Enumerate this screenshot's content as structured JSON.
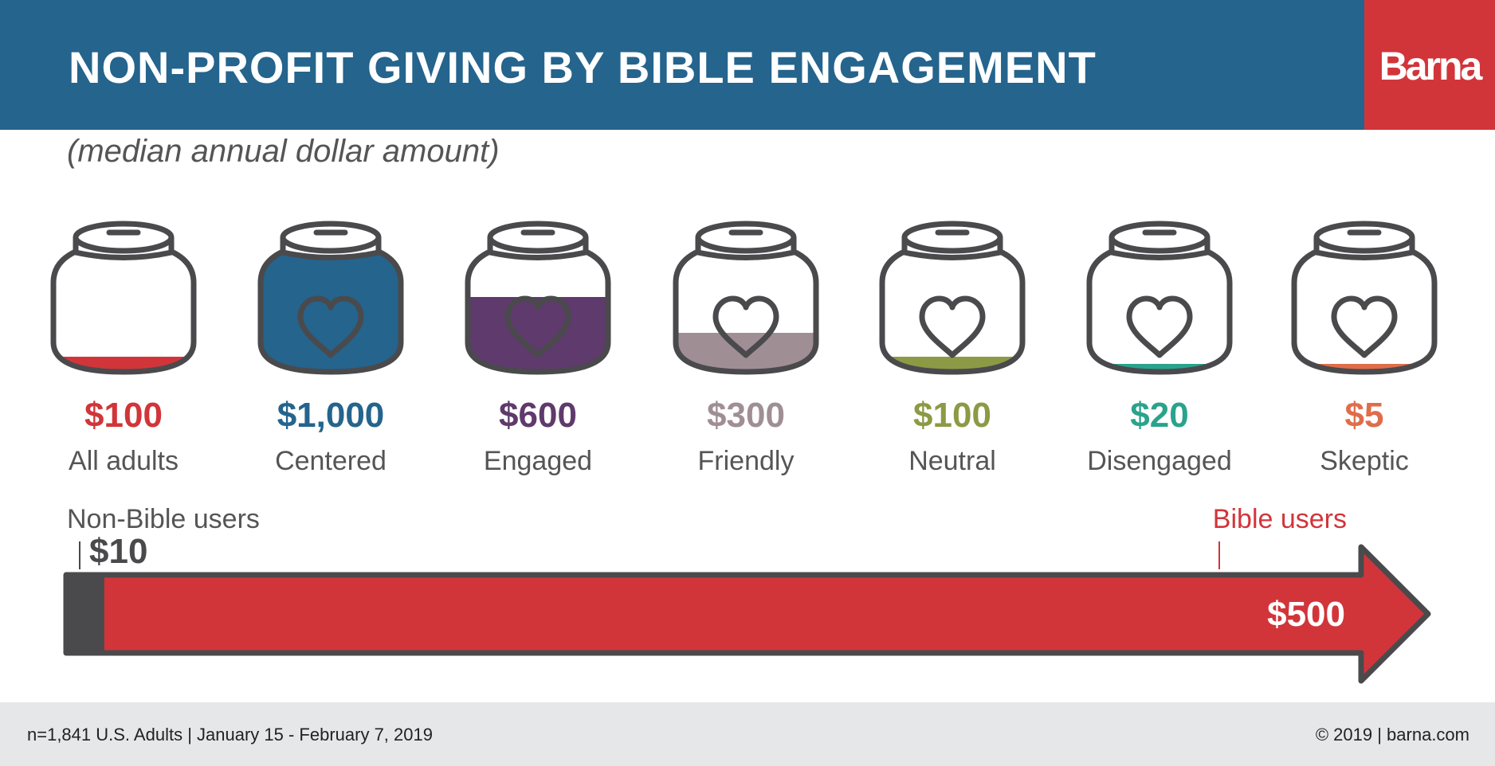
{
  "header": {
    "title": "NON-PROFIT GIVING BY BIBLE ENGAGEMENT",
    "logo": "Barna",
    "subtitle": "(median annual dollar amount)",
    "bg_color": "#24648d",
    "logo_color": "#d1353a"
  },
  "footer": {
    "left": "n=1,841 U.S. Adults | January 15 - February 7, 2019",
    "right": "© 2019 | barna.com"
  },
  "chart_data": [
    {
      "type": "bar",
      "categories": [
        "All adults",
        "Centered",
        "Engaged",
        "Friendly",
        "Neutral",
        "Disengaged",
        "Skeptic"
      ],
      "values": [
        100,
        1000,
        600,
        300,
        100,
        20,
        5
      ],
      "value_labels": [
        "$100",
        "$1,000",
        "$600",
        "$300",
        "$100",
        "$20",
        "$5"
      ],
      "colors": [
        "#d1353a",
        "#24648d",
        "#5f3a6c",
        "#a08e95",
        "#8c9a46",
        "#2aa38c",
        "#e06d4a"
      ],
      "ylim": [
        0,
        1000
      ],
      "title": "",
      "xlabel": "",
      "ylabel": "",
      "icon": "jar-heart-icon"
    },
    {
      "type": "bar",
      "categories": [
        "Non-Bible users",
        "Bible users"
      ],
      "values": [
        10,
        500
      ],
      "value_labels": [
        "$10",
        "$500"
      ],
      "colors": [
        "#4a4a4d",
        "#d1353a"
      ],
      "xlim": [
        0,
        500
      ],
      "title": "",
      "xlabel": "",
      "ylabel": "",
      "icon": "arrow-icon"
    }
  ]
}
